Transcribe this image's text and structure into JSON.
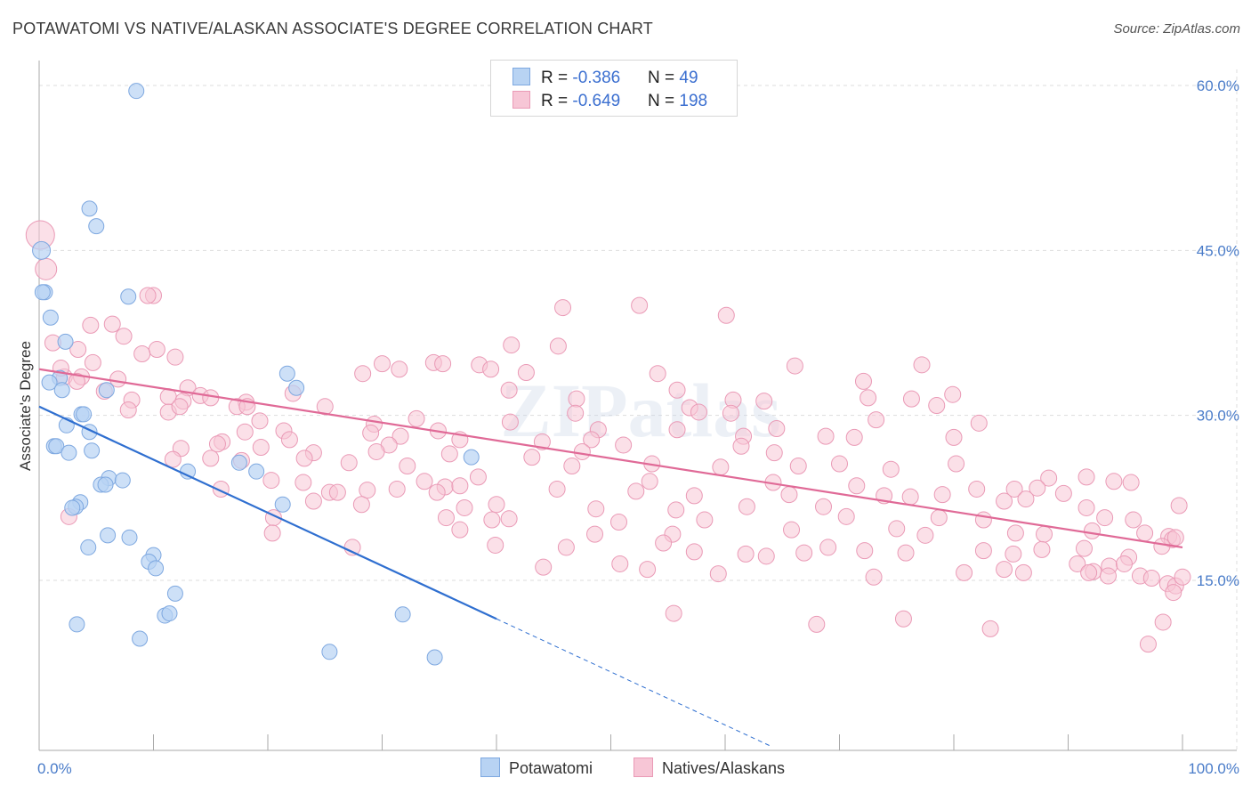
{
  "title": "POTAWATOMI VS NATIVE/ALASKAN ASSOCIATE'S DEGREE CORRELATION CHART",
  "source": "Source: ZipAtlas.com",
  "colors": {
    "potawatomi_fill": "#b8d3f3",
    "potawatomi_stroke": "#7ea8e0",
    "potawatomi_line": "#2f6fd0",
    "natives_fill": "#f7c6d6",
    "natives_stroke": "#ea9ab6",
    "natives_line": "#e06a97",
    "grid": "#dddddd",
    "tick_text": "#4a7cc9"
  },
  "legend_top": {
    "rows": [
      {
        "r_label": "R = ",
        "r_value": "-0.386",
        "n_label": "N = ",
        "n_value": "49"
      },
      {
        "r_label": "R = ",
        "r_value": "-0.649",
        "n_label": "N = ",
        "n_value": "198"
      }
    ]
  },
  "legend_bottom": [
    "Potawatomi",
    "Natives/Alaskans"
  ],
  "watermark": "ZIPatlas",
  "chart_data": {
    "type": "scatter",
    "title": "POTAWATOMI VS NATIVE/ALASKAN ASSOCIATE'S DEGREE CORRELATION CHART",
    "xlabel": "",
    "ylabel": "Associate's Degree",
    "xlim": [
      0,
      100
    ],
    "ylim": [
      0,
      62
    ],
    "x_tick_labels": [
      "0.0%",
      "100.0%"
    ],
    "y_ticks": [
      15,
      30,
      45,
      60
    ],
    "y_tick_labels": [
      "15.0%",
      "30.0%",
      "45.0%",
      "60.0%"
    ],
    "grid": true,
    "legend": "top-center",
    "series": [
      {
        "name": "Potawatomi",
        "r": -0.386,
        "n": 49,
        "trend": {
          "x0": 0,
          "y0": 30.8,
          "x1": 40,
          "y1": 11.5,
          "dashed_to_x": 64
        },
        "points": [
          [
            0.2,
            45
          ],
          [
            8.5,
            59.5
          ],
          [
            4.4,
            48.8
          ],
          [
            5,
            47.2
          ],
          [
            0.5,
            41.2
          ],
          [
            0.3,
            41.2
          ],
          [
            7.8,
            40.8
          ],
          [
            1,
            38.9
          ],
          [
            2.3,
            36.7
          ],
          [
            1.8,
            33.4
          ],
          [
            0.9,
            33
          ],
          [
            2,
            32.3
          ],
          [
            5.9,
            32.3
          ],
          [
            21.7,
            33.8
          ],
          [
            22.5,
            32.5
          ],
          [
            3.7,
            30.1
          ],
          [
            3.9,
            30.1
          ],
          [
            2.4,
            29.1
          ],
          [
            4.4,
            28.5
          ],
          [
            1.3,
            27.2
          ],
          [
            1.5,
            27.2
          ],
          [
            4.6,
            26.8
          ],
          [
            2.6,
            26.6
          ],
          [
            37.8,
            26.2
          ],
          [
            17.5,
            25.7
          ],
          [
            13,
            24.9
          ],
          [
            19,
            24.9
          ],
          [
            6.1,
            24.3
          ],
          [
            7.3,
            24.1
          ],
          [
            5.4,
            23.7
          ],
          [
            5.8,
            23.7
          ],
          [
            3.6,
            22.1
          ],
          [
            3.2,
            21.7
          ],
          [
            2.9,
            21.6
          ],
          [
            21.3,
            21.9
          ],
          [
            6,
            19.1
          ],
          [
            7.9,
            18.9
          ],
          [
            4.3,
            18
          ],
          [
            10,
            17.3
          ],
          [
            9.6,
            16.7
          ],
          [
            10.2,
            16.1
          ],
          [
            11.9,
            13.8
          ],
          [
            11,
            11.8
          ],
          [
            11.4,
            12
          ],
          [
            3.3,
            11
          ],
          [
            8.8,
            9.7
          ],
          [
            31.8,
            11.9
          ],
          [
            25.4,
            8.5
          ],
          [
            34.6,
            8
          ]
        ]
      },
      {
        "name": "Natives/Alaskans",
        "r": -0.649,
        "n": 198,
        "trend": {
          "x0": 0,
          "y0": 34.2,
          "x1": 100,
          "y1": 18
        },
        "points": [
          [
            0.1,
            46.4
          ],
          [
            0.6,
            43.3
          ],
          [
            10,
            40.9
          ],
          [
            9.5,
            40.9
          ],
          [
            45.8,
            39.8
          ],
          [
            52.5,
            40
          ],
          [
            60.1,
            39.1
          ],
          [
            4.5,
            38.2
          ],
          [
            6.4,
            38.3
          ],
          [
            1.2,
            36.6
          ],
          [
            7.4,
            37.2
          ],
          [
            3.4,
            36
          ],
          [
            10.3,
            36
          ],
          [
            11.9,
            35.3
          ],
          [
            9,
            35.6
          ],
          [
            45.4,
            36.3
          ],
          [
            41.3,
            36.4
          ],
          [
            4.7,
            34.8
          ],
          [
            30,
            34.7
          ],
          [
            34.5,
            34.8
          ],
          [
            35.3,
            34.7
          ],
          [
            38.5,
            34.6
          ],
          [
            39.5,
            34.2
          ],
          [
            66.1,
            34.5
          ],
          [
            77.2,
            34.6
          ],
          [
            2.2,
            33.5
          ],
          [
            1.9,
            34.3
          ],
          [
            3.7,
            33.5
          ],
          [
            3.3,
            33.1
          ],
          [
            6.9,
            33.3
          ],
          [
            31.5,
            34.2
          ],
          [
            28.3,
            33.8
          ],
          [
            42.6,
            33.9
          ],
          [
            54.1,
            33.8
          ],
          [
            72.1,
            33.1
          ],
          [
            5.7,
            32.2
          ],
          [
            11.3,
            31.7
          ],
          [
            13,
            32.5
          ],
          [
            14.1,
            31.8
          ],
          [
            22.2,
            32
          ],
          [
            41.1,
            32.3
          ],
          [
            55.8,
            32.3
          ],
          [
            79.9,
            31.9
          ],
          [
            8.1,
            31.4
          ],
          [
            12.6,
            31.3
          ],
          [
            15,
            31.6
          ],
          [
            18.1,
            31.2
          ],
          [
            47,
            31.5
          ],
          [
            60.7,
            31.4
          ],
          [
            63.4,
            31.3
          ],
          [
            72.5,
            31.6
          ],
          [
            76.3,
            31.5
          ],
          [
            7.8,
            30.5
          ],
          [
            11.3,
            30.3
          ],
          [
            12.3,
            30.8
          ],
          [
            17.3,
            30.8
          ],
          [
            18.2,
            30.8
          ],
          [
            25,
            30.8
          ],
          [
            56.9,
            30.7
          ],
          [
            60.5,
            30.2
          ],
          [
            57.7,
            30.3
          ],
          [
            46.9,
            30.2
          ],
          [
            78.5,
            30.9
          ],
          [
            19.3,
            29.5
          ],
          [
            29.3,
            29.2
          ],
          [
            33,
            29.7
          ],
          [
            41.2,
            29.4
          ],
          [
            48.9,
            28.7
          ],
          [
            55.8,
            28.7
          ],
          [
            64.5,
            28.8
          ],
          [
            73.2,
            29.6
          ],
          [
            82.2,
            29.3
          ],
          [
            18,
            28.5
          ],
          [
            21.4,
            28.6
          ],
          [
            29,
            28.4
          ],
          [
            31.6,
            28.1
          ],
          [
            34.9,
            28.6
          ],
          [
            61.6,
            28.1
          ],
          [
            71.3,
            28
          ],
          [
            80,
            28
          ],
          [
            16,
            27.6
          ],
          [
            15.6,
            27.4
          ],
          [
            19.4,
            27.1
          ],
          [
            21.9,
            27.8
          ],
          [
            30.6,
            27.3
          ],
          [
            36.8,
            27.8
          ],
          [
            44,
            27.6
          ],
          [
            48.3,
            27.8
          ],
          [
            51.1,
            27.3
          ],
          [
            61.4,
            27.2
          ],
          [
            68.8,
            28.1
          ],
          [
            12.4,
            27
          ],
          [
            24,
            26.6
          ],
          [
            29.5,
            26.7
          ],
          [
            35.9,
            26.5
          ],
          [
            43.1,
            26.2
          ],
          [
            47.5,
            26.7
          ],
          [
            64.3,
            26.6
          ],
          [
            80.2,
            25.6
          ],
          [
            11.7,
            26
          ],
          [
            15,
            26.1
          ],
          [
            17.7,
            25.9
          ],
          [
            23.2,
            26.1
          ],
          [
            27.1,
            25.7
          ],
          [
            32.2,
            25.4
          ],
          [
            46.6,
            25.4
          ],
          [
            53.6,
            25.6
          ],
          [
            59.6,
            25.3
          ],
          [
            66.4,
            25.4
          ],
          [
            70,
            25.6
          ],
          [
            74.5,
            25.1
          ],
          [
            88.3,
            24.3
          ],
          [
            20.3,
            24.1
          ],
          [
            23.1,
            23.9
          ],
          [
            33.7,
            24
          ],
          [
            38.4,
            24.4
          ],
          [
            35.5,
            23.5
          ],
          [
            36.8,
            23.6
          ],
          [
            53.4,
            24
          ],
          [
            64.2,
            23.9
          ],
          [
            71.5,
            23.6
          ],
          [
            82,
            23.3
          ],
          [
            87.3,
            23.4
          ],
          [
            91.6,
            24.4
          ],
          [
            94,
            24
          ],
          [
            95.5,
            23.9
          ],
          [
            15.9,
            23.3
          ],
          [
            25.4,
            23
          ],
          [
            26.1,
            23
          ],
          [
            28.7,
            23.2
          ],
          [
            31.3,
            23.3
          ],
          [
            34.8,
            23
          ],
          [
            45.3,
            23.3
          ],
          [
            52.2,
            23.1
          ],
          [
            57.3,
            22.7
          ],
          [
            65.6,
            22.8
          ],
          [
            73.9,
            22.7
          ],
          [
            79,
            22.8
          ],
          [
            85.3,
            23.3
          ],
          [
            89.6,
            22.9
          ],
          [
            24,
            22.2
          ],
          [
            28.2,
            21.9
          ],
          [
            37.2,
            21.6
          ],
          [
            40,
            21.9
          ],
          [
            48.7,
            21.5
          ],
          [
            55.7,
            21.4
          ],
          [
            61.9,
            21.7
          ],
          [
            68.6,
            21.7
          ],
          [
            76.2,
            22.6
          ],
          [
            84.4,
            22.2
          ],
          [
            86.3,
            22.4
          ],
          [
            91.6,
            21.6
          ],
          [
            99.7,
            21.8
          ],
          [
            2.6,
            20.8
          ],
          [
            20.5,
            20.7
          ],
          [
            35.6,
            20.7
          ],
          [
            39.6,
            20.5
          ],
          [
            41.1,
            20.6
          ],
          [
            50.7,
            20.3
          ],
          [
            58.2,
            20.5
          ],
          [
            70.6,
            20.8
          ],
          [
            78.7,
            20.7
          ],
          [
            82.6,
            20.5
          ],
          [
            93.2,
            20.7
          ],
          [
            95.7,
            20.5
          ],
          [
            20.4,
            19.3
          ],
          [
            36.8,
            19.6
          ],
          [
            48.6,
            19.2
          ],
          [
            55.4,
            19.2
          ],
          [
            65.8,
            19.6
          ],
          [
            75,
            19.7
          ],
          [
            77.5,
            19.1
          ],
          [
            85.4,
            19.3
          ],
          [
            87.9,
            19.2
          ],
          [
            92.1,
            19.5
          ],
          [
            96.7,
            19.3
          ],
          [
            98.8,
            19
          ],
          [
            99.1,
            18.7
          ],
          [
            27.4,
            18
          ],
          [
            39.9,
            18.2
          ],
          [
            46.1,
            18
          ],
          [
            54.6,
            18.4
          ],
          [
            69,
            18
          ],
          [
            82.6,
            17.7
          ],
          [
            87.7,
            17.8
          ],
          [
            91.4,
            17.9
          ],
          [
            95.3,
            17.1
          ],
          [
            98.2,
            18.1
          ],
          [
            99.4,
            18.9
          ],
          [
            50.8,
            16.5
          ],
          [
            57.3,
            17.6
          ],
          [
            63.6,
            17.2
          ],
          [
            66.9,
            17.5
          ],
          [
            72.2,
            17.7
          ],
          [
            75.8,
            17.5
          ],
          [
            85.2,
            17.4
          ],
          [
            90.8,
            16.5
          ],
          [
            93.6,
            16.3
          ],
          [
            96.3,
            15.4
          ],
          [
            97.3,
            15.2
          ],
          [
            98.7,
            14.7
          ],
          [
            99.4,
            14.5
          ],
          [
            100,
            15.3
          ],
          [
            92.2,
            15.8
          ],
          [
            93.5,
            15.4
          ],
          [
            91.8,
            15.7
          ],
          [
            44.1,
            16.2
          ],
          [
            53.2,
            16
          ],
          [
            59.4,
            15.6
          ],
          [
            73,
            15.3
          ],
          [
            80.9,
            15.7
          ],
          [
            84.4,
            16
          ],
          [
            86.1,
            15.7
          ],
          [
            94.9,
            16.5
          ],
          [
            55.5,
            12
          ],
          [
            68,
            11
          ],
          [
            75.6,
            11.5
          ],
          [
            83.2,
            10.6
          ],
          [
            97,
            9.2
          ],
          [
            98.3,
            11.2
          ],
          [
            99.2,
            13.9
          ],
          [
            61.8,
            17.4
          ]
        ]
      }
    ]
  }
}
